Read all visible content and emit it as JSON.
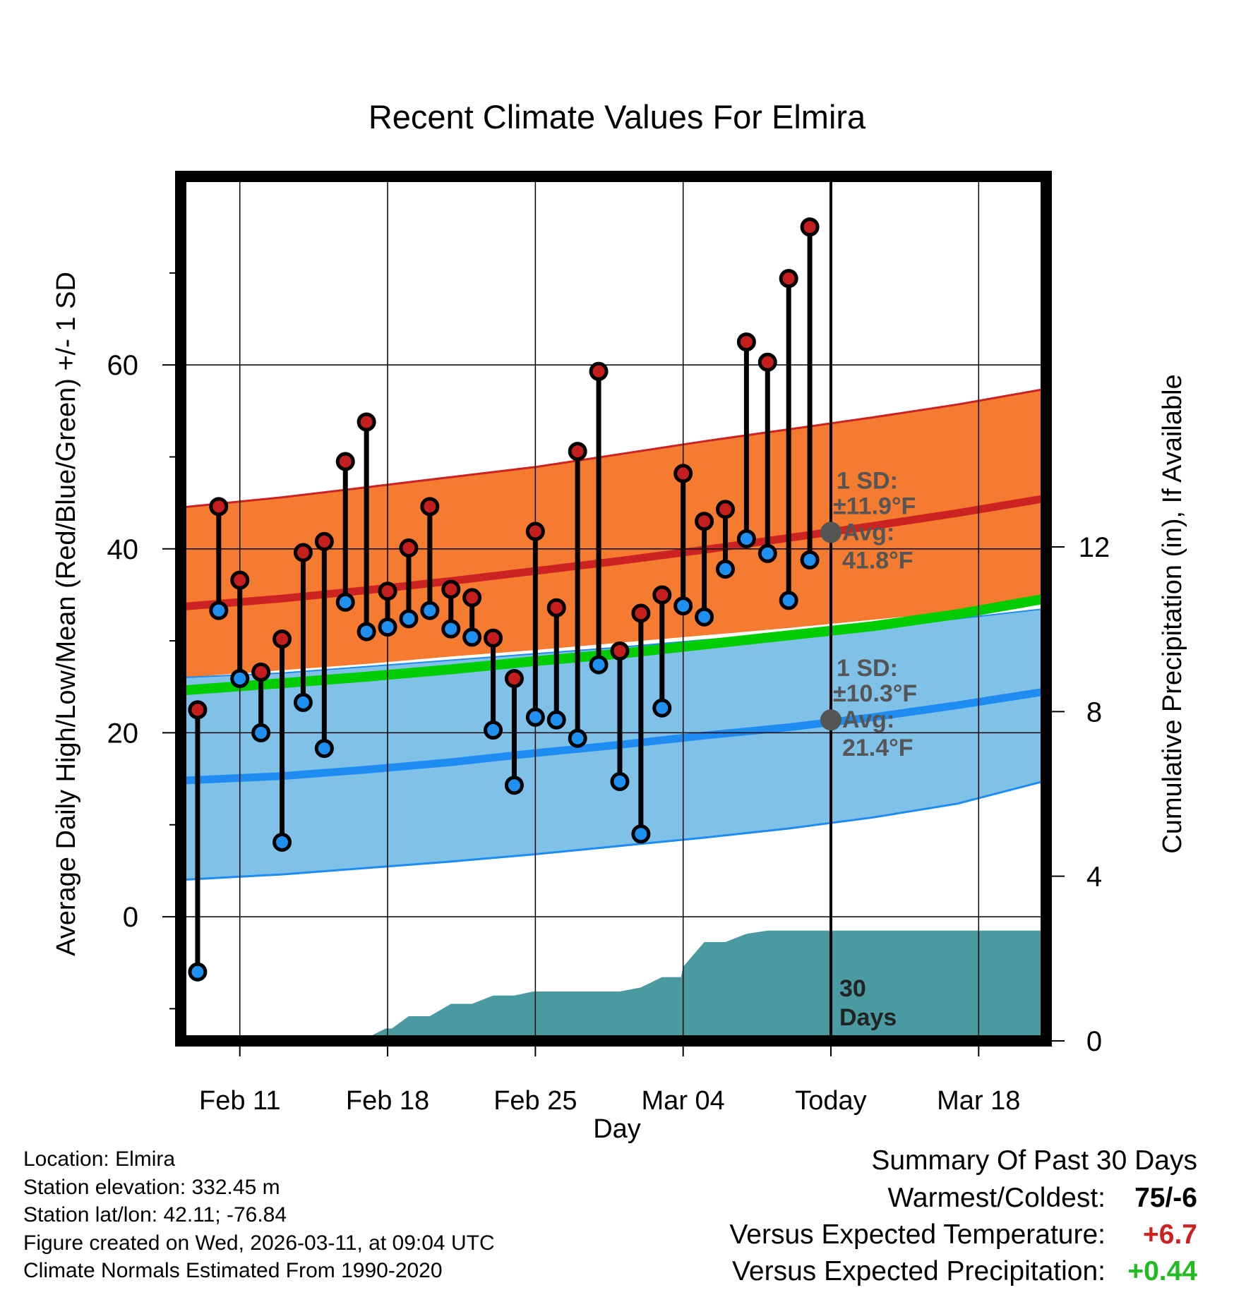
{
  "title": "Recent Climate Values For Elmira",
  "colors": {
    "high_band": "#f47b2f",
    "high_line": "#cc2222",
    "low_band": "#80c1e8",
    "low_line": "#1e8cf0",
    "mean_line": "#00cc00",
    "precip": "#4a9aa2",
    "high_dot": "#c41e1e",
    "low_dot": "#1e90f0",
    "avg_marker": "#555555",
    "warm_text": "#cc2222",
    "precip_text": "#22bb22"
  },
  "chart_data": {
    "type": "line",
    "title": "Recent Climate Values For Elmira",
    "xlabel": "Day",
    "ylabel": "Average Daily High/Low/Mean (Red/Blue/Green) +/- 1 SD",
    "y2label": "Cumulative Precipitation (in), If Available",
    "xlim": [
      -0.8,
      40.2
    ],
    "ylim": [
      -13.5,
      80.5
    ],
    "y2lim": [
      0,
      21
    ],
    "x_ticks": [
      {
        "x": 2,
        "label": "Feb 11"
      },
      {
        "x": 9,
        "label": "Feb 18"
      },
      {
        "x": 16,
        "label": "Feb 25"
      },
      {
        "x": 23,
        "label": "Mar 04"
      },
      {
        "x": 30,
        "label": "Today"
      },
      {
        "x": 37,
        "label": "Mar 18"
      }
    ],
    "y_ticks": [
      0,
      20,
      40,
      60
    ],
    "y_minor_ticks": [
      -10,
      10,
      30,
      50,
      70
    ],
    "y2_ticks": [
      0,
      4,
      8,
      12
    ],
    "normals": {
      "x": [
        -0.8,
        4,
        8,
        12,
        16,
        20,
        24,
        28,
        32,
        36,
        40.2
      ],
      "high_avg": [
        33.7,
        34.6,
        35.5,
        36.5,
        37.6,
        38.7,
        39.9,
        41.2,
        42.5,
        43.9,
        45.5
      ],
      "high_upper": [
        44.5,
        45.6,
        46.7,
        47.8,
        48.9,
        50.3,
        51.7,
        53.0,
        54.3,
        55.7,
        57.4
      ],
      "high_lower": [
        26.0,
        26.8,
        27.5,
        28.3,
        29.0,
        29.8,
        30.6,
        31.4,
        32.3,
        33.2,
        34.0
      ],
      "mean": [
        24.6,
        25.4,
        26.1,
        26.9,
        27.8,
        28.6,
        29.6,
        30.6,
        31.6,
        32.9,
        34.6
      ],
      "low_avg": [
        14.8,
        15.3,
        16.0,
        16.8,
        17.8,
        18.7,
        19.7,
        20.6,
        21.7,
        23.0,
        24.5
      ],
      "low_upper": [
        26.0,
        26.5,
        27.2,
        27.9,
        28.6,
        29.3,
        30.1,
        30.8,
        31.6,
        32.4,
        33.5
      ],
      "low_lower": [
        4.0,
        4.6,
        5.3,
        6.0,
        6.8,
        7.7,
        8.6,
        9.6,
        10.8,
        12.3,
        14.8
      ]
    },
    "series": [
      {
        "name": "Daily High",
        "values": [
          22.5,
          44.6,
          36.6,
          26.6,
          30.2,
          39.6,
          40.8,
          49.5,
          53.8,
          35.4,
          40.1,
          44.6,
          35.6,
          34.7,
          30.3,
          25.9,
          41.9,
          33.6,
          50.6,
          59.3,
          28.9,
          33.0,
          35.0,
          48.2,
          43.0,
          44.3,
          62.5,
          60.3,
          69.4,
          75.0
        ]
      },
      {
        "name": "Daily Low",
        "values": [
          -6.0,
          33.3,
          25.9,
          20.0,
          8.1,
          23.3,
          18.3,
          34.2,
          31.0,
          31.5,
          32.4,
          33.3,
          31.3,
          30.4,
          20.3,
          14.3,
          21.7,
          21.4,
          19.4,
          27.4,
          14.7,
          9.0,
          22.7,
          33.8,
          32.6,
          37.8,
          41.1,
          39.5,
          34.4,
          38.8
        ]
      }
    ],
    "precip_cumulative": {
      "x": [
        -0.8,
        0.2,
        0.9,
        8.2,
        8.9,
        9.2,
        10.0,
        11.0,
        12.0,
        13.0,
        14.0,
        15.0,
        15.9,
        20.0,
        21.0,
        22.0,
        22.9,
        23.0,
        24.0,
        25.0,
        26.0,
        27.0,
        40.2
      ],
      "y": [
        0,
        0,
        0.12,
        0.12,
        0.3,
        0.3,
        0.6,
        0.6,
        0.9,
        0.9,
        1.1,
        1.1,
        1.2,
        1.2,
        1.3,
        1.55,
        1.55,
        1.8,
        2.4,
        2.4,
        2.6,
        2.68,
        2.68
      ]
    },
    "annotations": {
      "today_x": 30,
      "high_sd_label": "1 SD:",
      "high_sd_value": "±11.9°F",
      "high_avg_label": "Avg:",
      "high_avg_value": "41.8°F",
      "high_avg_marker": 41.8,
      "low_sd_label": "1 SD:",
      "low_sd_value": "±10.3°F",
      "low_avg_label": "Avg:",
      "low_avg_value": "21.4°F",
      "low_avg_marker": 21.4,
      "days_label_1": "30",
      "days_label_2": "Days"
    }
  },
  "info": {
    "location": "Location: Elmira",
    "elevation": "Station elevation: 332.45 m",
    "latlon": "Station lat/lon: 42.11; -76.84",
    "created": "Figure created on Wed, 2026-03-11, at 09:04 UTC",
    "normals": "Climate Normals Estimated From 1990-2020"
  },
  "summary": {
    "heading": "Summary Of Past 30 Days",
    "warmest_label": "Warmest/Coldest:",
    "warmest_value": "75/-6",
    "temp_label": "Versus Expected Temperature:",
    "temp_value": "+6.7",
    "precip_label": "Versus Expected Precipitation:",
    "precip_value": "+0.44"
  }
}
